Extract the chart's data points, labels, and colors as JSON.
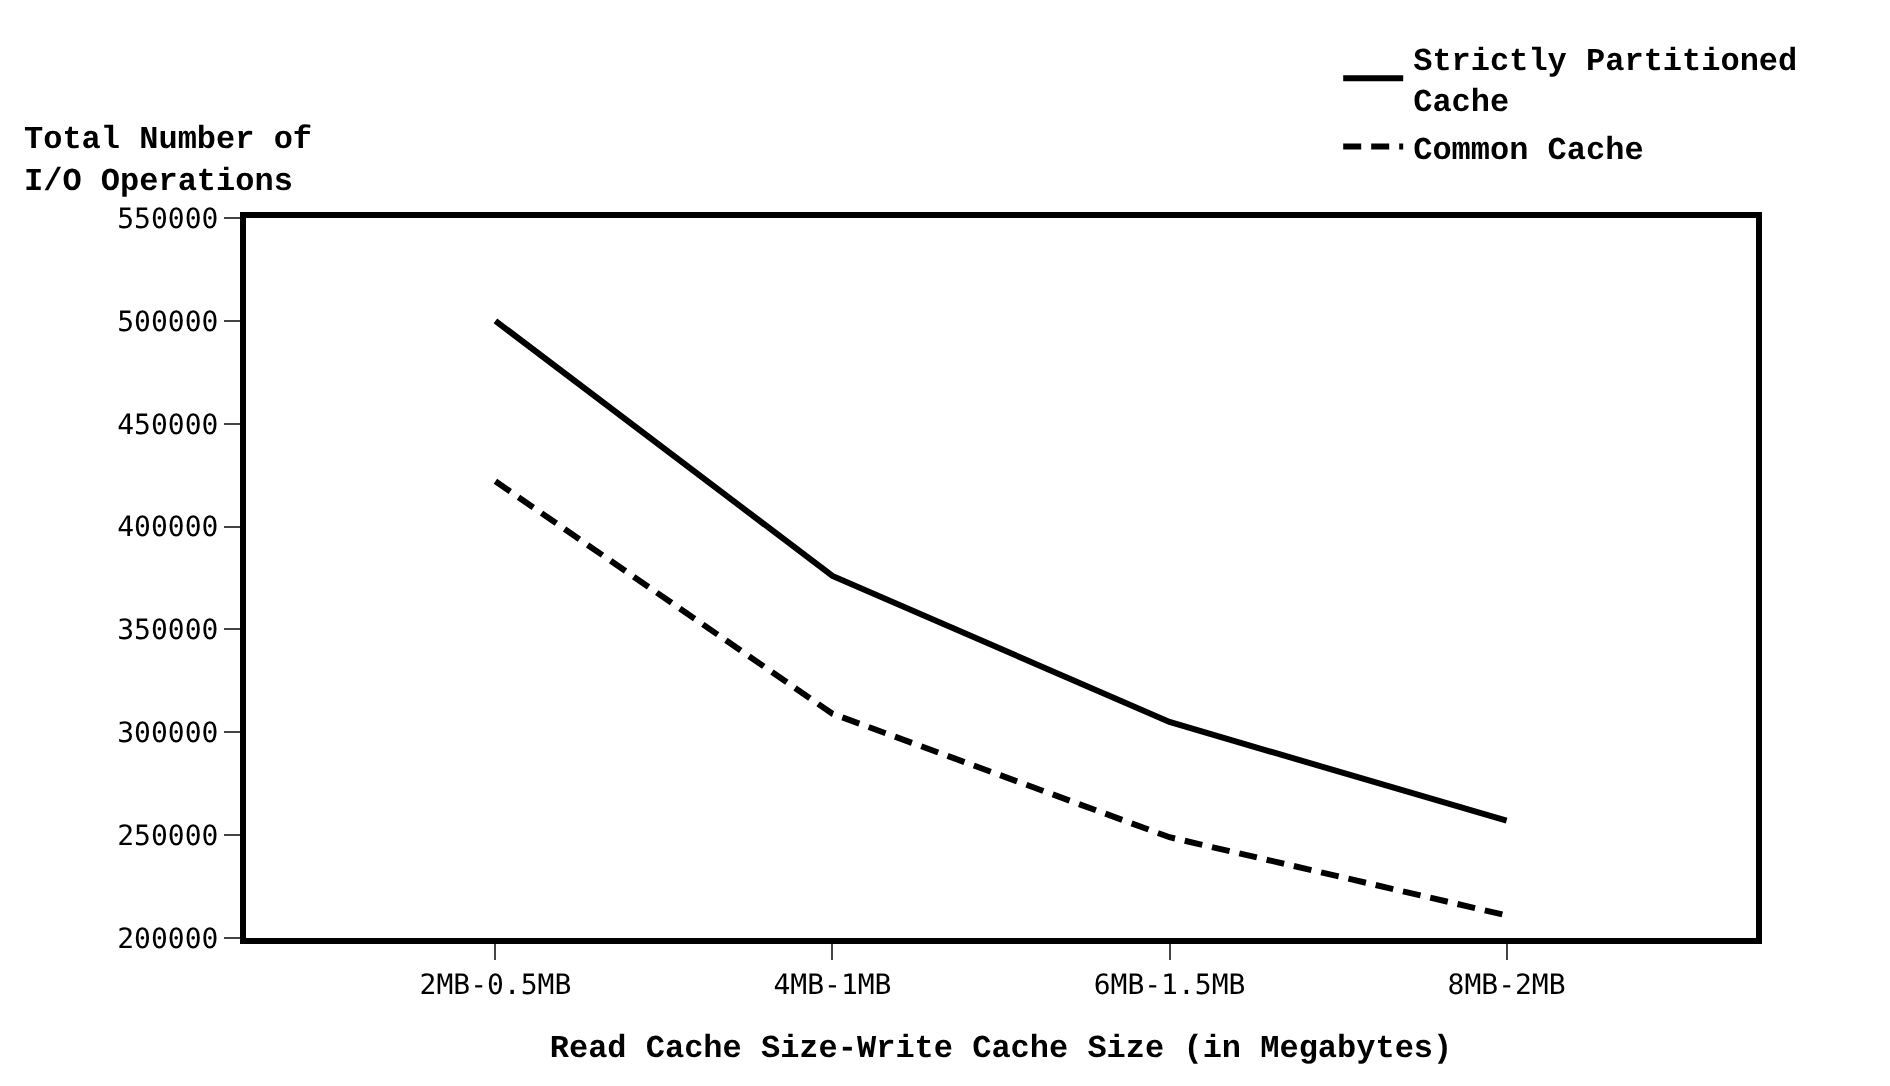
{
  "chart_data": {
    "type": "line",
    "xlabel": "Read Cache Size-Write Cache Size (in Megabytes)",
    "ylabel": "Total Number of I/O Operations",
    "categories": [
      "2MB-0.5MB",
      "4MB-1MB",
      "6MB-1.5MB",
      "8MB-2MB"
    ],
    "series": [
      {
        "name": "Strictly Partitioned Cache",
        "color": "#000000",
        "line_style": "solid",
        "values": [
          500000,
          376000,
          305000,
          257000
        ]
      },
      {
        "name": "Common Cache",
        "color": "#000000",
        "line_style": "dashed",
        "values": [
          422000,
          309000,
          249000,
          211000
        ]
      }
    ],
    "ylim": [
      200000,
      550000
    ],
    "yticks": [
      200000,
      250000,
      300000,
      350000,
      400000,
      450000,
      500000,
      550000
    ],
    "grid": false,
    "legend": "top right",
    "marker": "none"
  }
}
